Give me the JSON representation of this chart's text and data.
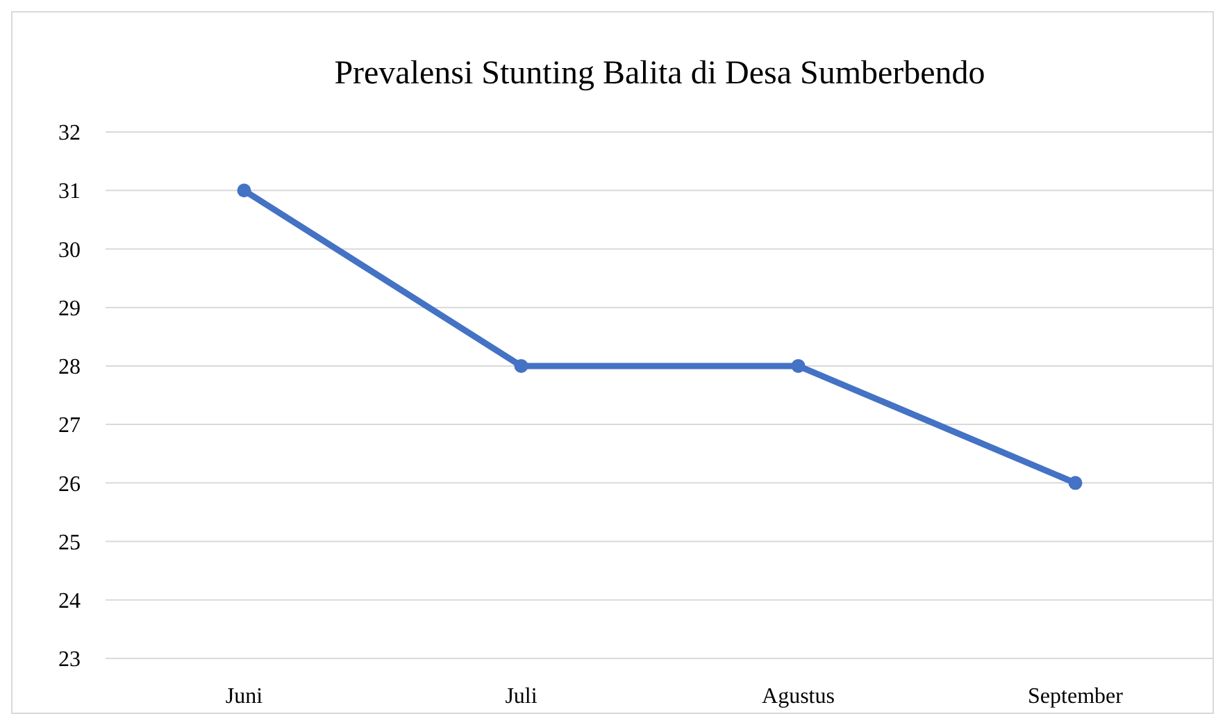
{
  "chart_data": {
    "type": "line",
    "title": "Prevalensi Stunting Balita  di Desa Sumberbendo",
    "categories": [
      "Juni",
      "Juli",
      "Agustus",
      "September"
    ],
    "series": [
      {
        "color": "#4472c4",
        "values": [
          31,
          28,
          28,
          26
        ]
      }
    ],
    "ylim": [
      23,
      32
    ],
    "yticks": [
      23,
      24,
      25,
      26,
      27,
      28,
      29,
      30,
      31,
      32
    ],
    "grid": "y",
    "marker": "circle"
  }
}
